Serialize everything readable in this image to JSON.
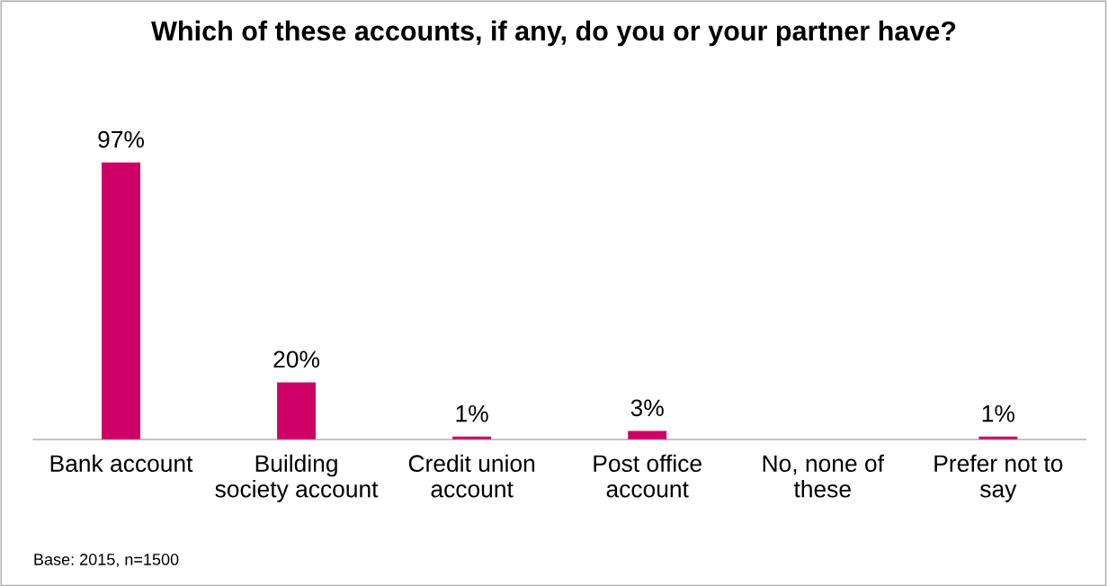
{
  "chart_data": {
    "type": "bar",
    "title": "Which of these accounts, if any, do you or your partner have?",
    "categories": [
      "Bank account",
      "Building society account",
      "Credit union account",
      "Post office account",
      "No, none of these",
      "Prefer not to say"
    ],
    "values": [
      97,
      20,
      1,
      3,
      0,
      1
    ],
    "value_labels": [
      "97%",
      "20%",
      "1%",
      "3%",
      null,
      "1%"
    ],
    "color": "#cc0066",
    "annotations": [
      "Base: 2015, n=1500"
    ]
  }
}
